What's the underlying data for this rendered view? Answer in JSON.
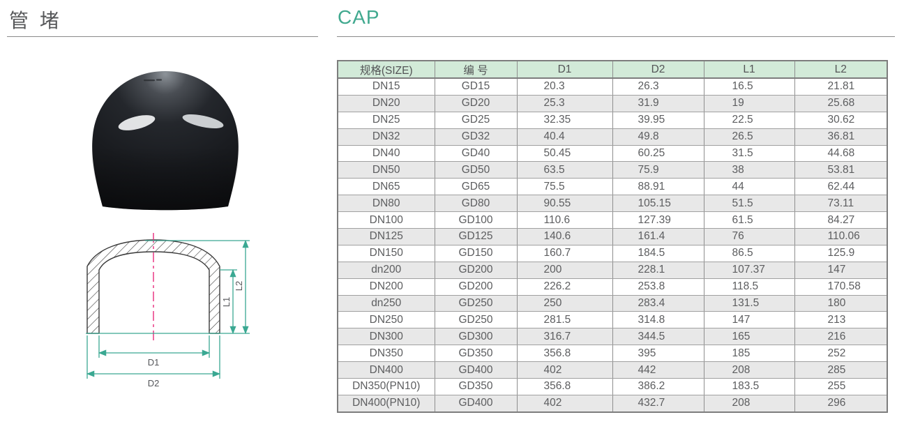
{
  "titles": {
    "cn": "管 堵",
    "en": "CAP"
  },
  "diagram": {
    "labels": {
      "d1": "D1",
      "d2": "D2",
      "l1": "L1",
      "l2": "L2"
    }
  },
  "table": {
    "headers": [
      "规格(SIZE)",
      "编 号",
      "D1",
      "D2",
      "L1",
      "L2"
    ],
    "rows": [
      [
        "DN15",
        "GD15",
        "20.3",
        "26.3",
        "16.5",
        "21.81"
      ],
      [
        "DN20",
        "GD20",
        "25.3",
        "31.9",
        "19",
        "25.68"
      ],
      [
        "DN25",
        "GD25",
        "32.35",
        "39.95",
        "22.5",
        "30.62"
      ],
      [
        "DN32",
        "GD32",
        "40.4",
        "49.8",
        "26.5",
        "36.81"
      ],
      [
        "DN40",
        "GD40",
        "50.45",
        "60.25",
        "31.5",
        "44.68"
      ],
      [
        "DN50",
        "GD50",
        "63.5",
        "75.9",
        "38",
        "53.81"
      ],
      [
        "DN65",
        "GD65",
        "75.5",
        "88.91",
        "44",
        "62.44"
      ],
      [
        "DN80",
        "GD80",
        "90.55",
        "105.15",
        "51.5",
        "73.11"
      ],
      [
        "DN100",
        "GD100",
        "110.6",
        "127.39",
        "61.5",
        "84.27"
      ],
      [
        "DN125",
        "GD125",
        "140.6",
        "161.4",
        "76",
        "110.06"
      ],
      [
        "DN150",
        "GD150",
        "160.7",
        "184.5",
        "86.5",
        "125.9"
      ],
      [
        "dn200",
        "GD200",
        "200",
        "228.1",
        "107.37",
        "147"
      ],
      [
        "DN200",
        "GD200",
        "226.2",
        "253.8",
        "118.5",
        "170.58"
      ],
      [
        "dn250",
        "GD250",
        "250",
        "283.4",
        "131.5",
        "180"
      ],
      [
        "DN250",
        "GD250",
        "281.5",
        "314.8",
        "147",
        "213"
      ],
      [
        "DN300",
        "GD300",
        "316.7",
        "344.5",
        "165",
        "216"
      ],
      [
        "DN350",
        "GD350",
        "356.8",
        "395",
        "185",
        "252"
      ],
      [
        "DN400",
        "GD400",
        "402",
        "442",
        "208",
        "285"
      ],
      [
        "DN350(PN10)",
        "GD350",
        "356.8",
        "386.2",
        "183.5",
        "255"
      ],
      [
        "DN400(PN10)",
        "GD400",
        "402",
        "432.7",
        "208",
        "296"
      ]
    ]
  },
  "colors": {
    "accent_teal": "#41a98f",
    "dimension_line": "#3aa892",
    "centerline_magenta": "#e82a7c",
    "header_green": "#d2ead8",
    "row_stripe_gray": "#e8e8e8",
    "text_gray": "#5c5d5f"
  }
}
